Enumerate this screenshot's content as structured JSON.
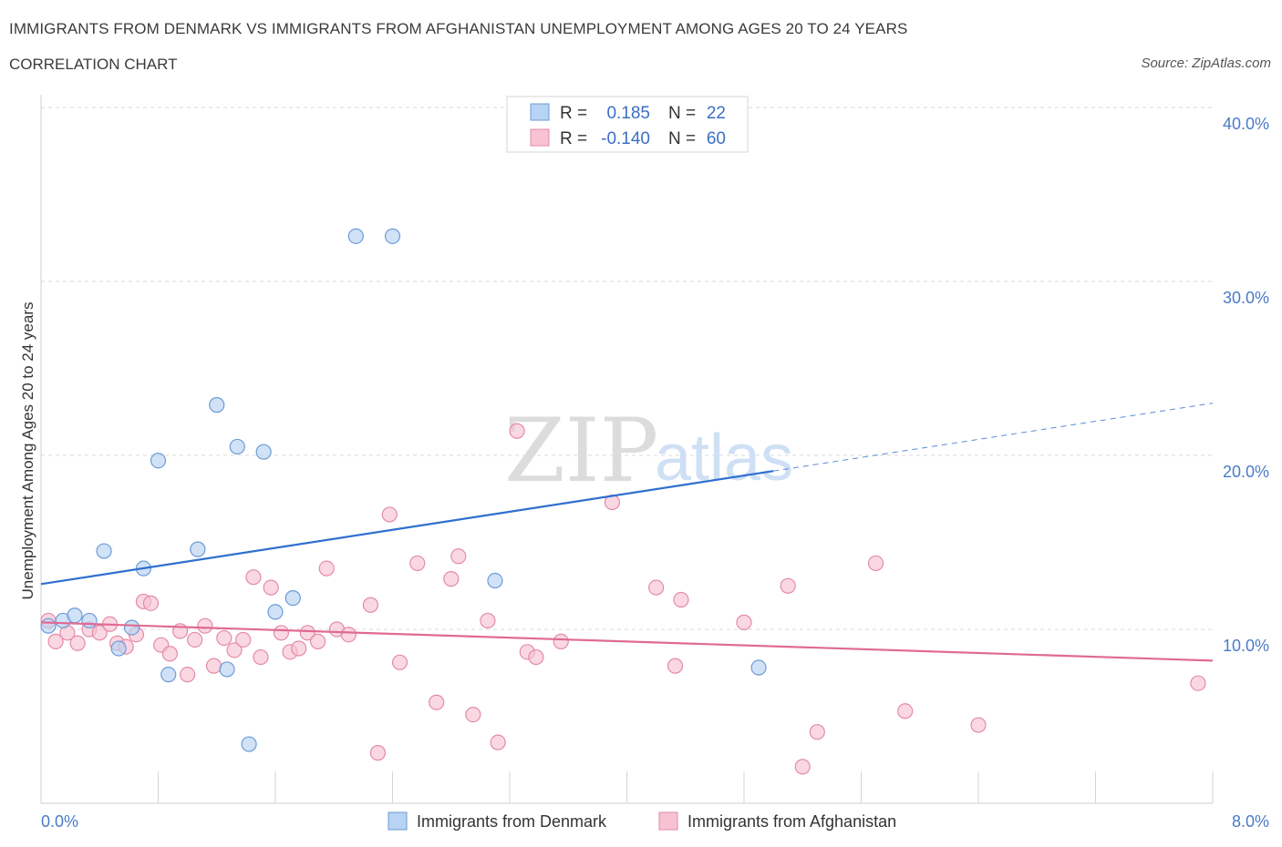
{
  "title": "IMMIGRANTS FROM DENMARK VS IMMIGRANTS FROM AFGHANISTAN UNEMPLOYMENT AMONG AGES 20 TO 24 YEARS",
  "subtitle": "CORRELATION CHART",
  "source": "Source: ZipAtlas.com",
  "watermark": {
    "zip": "ZIP",
    "atlas": "atlas"
  },
  "colors": {
    "denmark_fill": "#b8d3f3",
    "denmark_stroke": "#6c9bd6",
    "denmark_line": "#2f6fd0",
    "afghanistan_fill": "#f7c3d3",
    "afghanistan_stroke": "#e48aa8",
    "afghanistan_line": "#e06a93",
    "grid": "#d9d9d9",
    "tick_text": "#4a7bc8"
  },
  "legend": {
    "rows": [
      {
        "r_label": "R =",
        "r_value": "0.185",
        "n_label": "N =",
        "n_value": "22"
      },
      {
        "r_label": "R =",
        "r_value": "-0.140",
        "n_label": "N =",
        "n_value": "60"
      }
    ]
  },
  "chart_data": {
    "type": "scatter",
    "title": "IMMIGRANTS FROM DENMARK VS IMMIGRANTS FROM AFGHANISTAN UNEMPLOYMENT AMONG AGES 20 TO 24 YEARS",
    "ylabel": "Unemployment Among Ages 20 to 24 years",
    "xlim": [
      0,
      8
    ],
    "ylim": [
      0,
      40
    ],
    "x_tick_labels": [
      "0.0%",
      "8.0%"
    ],
    "y_ticks": [
      10,
      20,
      30,
      40
    ],
    "y_tick_labels": [
      "10.0%",
      "20.0%",
      "30.0%",
      "40.0%"
    ],
    "grid": true,
    "legend_position": "top-center",
    "series": [
      {
        "name": "Immigrants from Denmark",
        "points": [
          [
            0.05,
            10.2
          ],
          [
            0.15,
            10.5
          ],
          [
            0.23,
            10.8
          ],
          [
            0.33,
            10.5
          ],
          [
            0.43,
            14.5
          ],
          [
            0.53,
            8.9
          ],
          [
            0.62,
            10.1
          ],
          [
            0.7,
            13.5
          ],
          [
            0.8,
            19.7
          ],
          [
            0.87,
            7.4
          ],
          [
            1.07,
            14.6
          ],
          [
            1.2,
            22.9
          ],
          [
            1.27,
            7.7
          ],
          [
            1.34,
            20.5
          ],
          [
            1.42,
            3.4
          ],
          [
            1.52,
            20.2
          ],
          [
            1.6,
            11.0
          ],
          [
            1.72,
            11.8
          ],
          [
            2.15,
            32.6
          ],
          [
            2.4,
            32.6
          ],
          [
            3.1,
            12.8
          ],
          [
            4.9,
            7.8
          ]
        ],
        "trend": {
          "x0": 0,
          "y0": 12.6,
          "x1": 5.0,
          "y1": 19.1,
          "dashed_to_x": 8.0,
          "dashed_to_y": 23.0
        }
      },
      {
        "name": "Immigrants from Afghanistan",
        "points": [
          [
            0.05,
            10.5
          ],
          [
            0.1,
            9.3
          ],
          [
            0.18,
            9.8
          ],
          [
            0.25,
            9.2
          ],
          [
            0.33,
            10.0
          ],
          [
            0.4,
            9.8
          ],
          [
            0.47,
            10.3
          ],
          [
            0.52,
            9.2
          ],
          [
            0.58,
            9.0
          ],
          [
            0.65,
            9.7
          ],
          [
            0.7,
            11.6
          ],
          [
            0.75,
            11.5
          ],
          [
            0.82,
            9.1
          ],
          [
            0.88,
            8.6
          ],
          [
            0.95,
            9.9
          ],
          [
            1.0,
            7.4
          ],
          [
            1.05,
            9.4
          ],
          [
            1.12,
            10.2
          ],
          [
            1.18,
            7.9
          ],
          [
            1.25,
            9.5
          ],
          [
            1.32,
            8.8
          ],
          [
            1.38,
            9.4
          ],
          [
            1.45,
            13.0
          ],
          [
            1.5,
            8.4
          ],
          [
            1.57,
            12.4
          ],
          [
            1.64,
            9.8
          ],
          [
            1.7,
            8.7
          ],
          [
            1.76,
            8.9
          ],
          [
            1.82,
            9.8
          ],
          [
            1.89,
            9.3
          ],
          [
            1.95,
            13.5
          ],
          [
            2.02,
            10.0
          ],
          [
            2.1,
            9.7
          ],
          [
            2.25,
            11.4
          ],
          [
            2.3,
            2.9
          ],
          [
            2.38,
            16.6
          ],
          [
            2.45,
            8.1
          ],
          [
            2.57,
            13.8
          ],
          [
            2.7,
            5.8
          ],
          [
            2.8,
            12.9
          ],
          [
            2.85,
            14.2
          ],
          [
            2.95,
            5.1
          ],
          [
            3.05,
            10.5
          ],
          [
            3.12,
            3.5
          ],
          [
            3.25,
            21.4
          ],
          [
            3.32,
            8.7
          ],
          [
            3.38,
            8.4
          ],
          [
            3.55,
            9.3
          ],
          [
            3.9,
            17.3
          ],
          [
            4.2,
            12.4
          ],
          [
            4.33,
            7.9
          ],
          [
            4.37,
            11.7
          ],
          [
            4.8,
            10.4
          ],
          [
            5.1,
            12.5
          ],
          [
            5.2,
            2.1
          ],
          [
            5.3,
            4.1
          ],
          [
            5.7,
            13.8
          ],
          [
            5.9,
            5.3
          ],
          [
            6.4,
            4.5
          ],
          [
            7.9,
            6.9
          ]
        ],
        "trend": {
          "x0": 0,
          "y0": 10.4,
          "x1": 8.0,
          "y1": 8.2
        }
      }
    ]
  }
}
